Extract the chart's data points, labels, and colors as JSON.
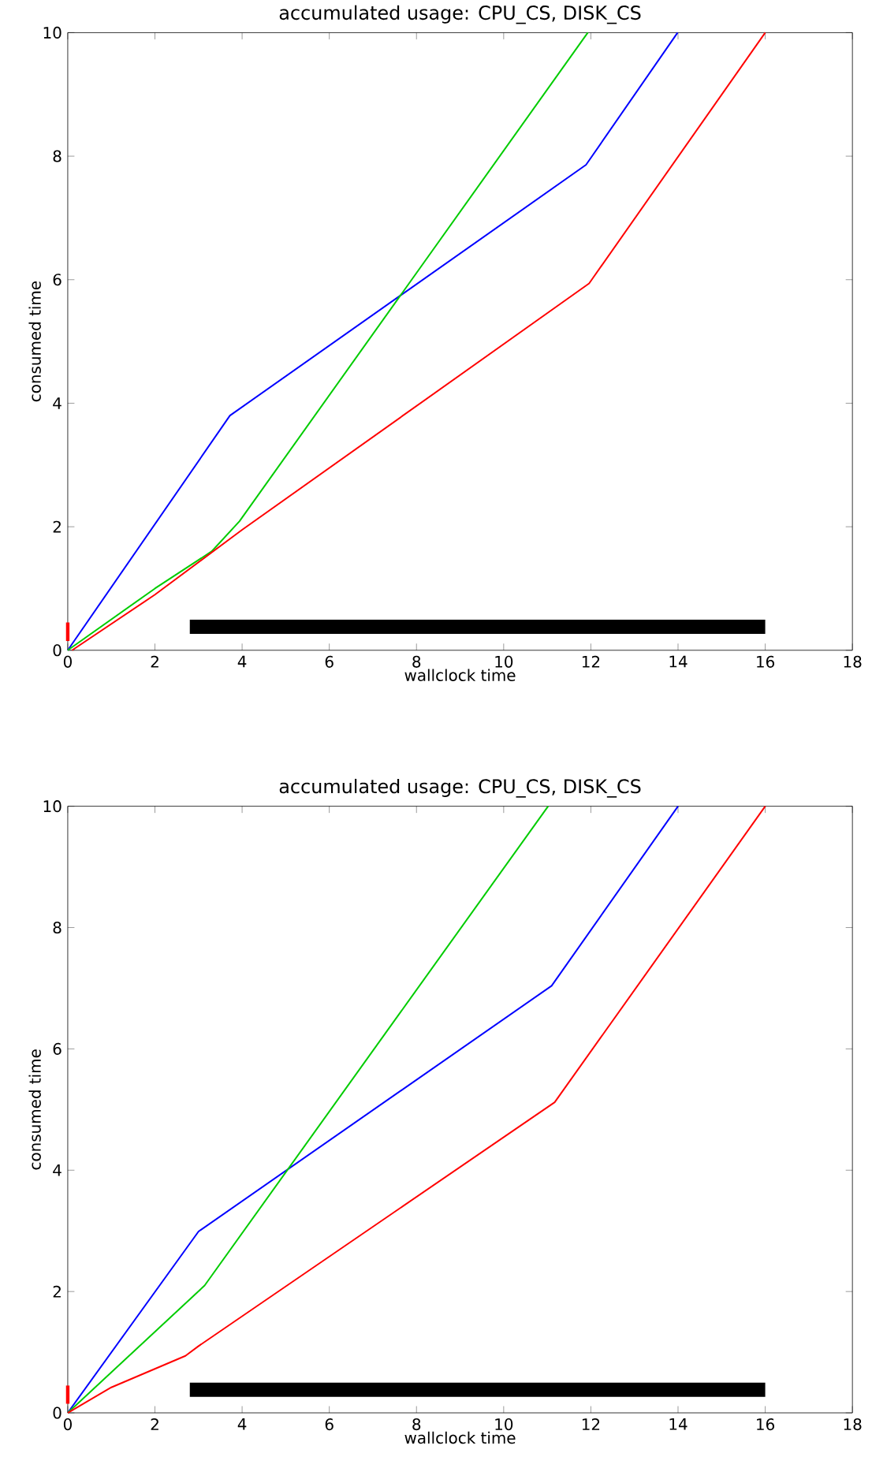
{
  "chart_data": [
    {
      "type": "line",
      "title": "accumulated usage: CPU_CS, DISK_CS",
      "xlabel": "wallclock time",
      "ylabel": "consumed time",
      "xlim": [
        0,
        18
      ],
      "ylim": [
        0,
        10
      ],
      "xticks": [
        0,
        2,
        4,
        6,
        8,
        10,
        12,
        14,
        16,
        18
      ],
      "yticks": [
        0,
        2,
        4,
        6,
        8,
        10
      ],
      "marker": "none",
      "series": [
        {
          "color": "#0000ff",
          "x": [
            0,
            3.72,
            11.89,
            13.99
          ],
          "values": [
            0,
            3.8,
            7.86,
            10
          ]
        },
        {
          "color": "#00cc00",
          "x": [
            0,
            2,
            3.3,
            3.94,
            11.93
          ],
          "values": [
            0,
            1.0,
            1.6,
            2.09,
            10
          ]
        },
        {
          "color": "#ff0000",
          "x": [
            0.1,
            2,
            4,
            11.96,
            16
          ],
          "values": [
            0,
            0.9,
            1.95,
            5.94,
            10
          ]
        },
        {
          "color": "#ff0000",
          "x": [
            0,
            0
          ],
          "values": [
            0.15,
            0.45
          ]
        },
        {
          "color": "#000000",
          "x": [
            2.8,
            16
          ],
          "values": [
            0.38,
            0.38
          ]
        }
      ]
    },
    {
      "type": "line",
      "title": "accumulated usage: CPU_CS, DISK_CS",
      "xlabel": "wallclock time",
      "ylabel": "consumed time",
      "xlim": [
        0,
        18
      ],
      "ylim": [
        0,
        10
      ],
      "xticks": [
        0,
        2,
        4,
        6,
        8,
        10,
        12,
        14,
        16,
        18
      ],
      "yticks": [
        0,
        2,
        4,
        6,
        8,
        10
      ],
      "marker": "none",
      "series": [
        {
          "color": "#0000ff",
          "x": [
            0,
            3.0,
            11.1,
            14
          ],
          "values": [
            0,
            2.99,
            7.04,
            10
          ]
        },
        {
          "color": "#00cc00",
          "x": [
            0,
            3.14,
            11.02
          ],
          "values": [
            0,
            2.1,
            10
          ]
        },
        {
          "color": "#ff0000",
          "x": [
            0,
            1,
            2.7,
            3.0,
            11.17,
            16
          ],
          "values": [
            0,
            0.42,
            0.94,
            1.1,
            5.12,
            10
          ]
        },
        {
          "color": "#ff0000",
          "x": [
            0,
            0
          ],
          "values": [
            0.15,
            0.45
          ]
        },
        {
          "color": "#000000",
          "x": [
            2.8,
            16
          ],
          "values": [
            0.38,
            0.38
          ]
        }
      ]
    }
  ]
}
